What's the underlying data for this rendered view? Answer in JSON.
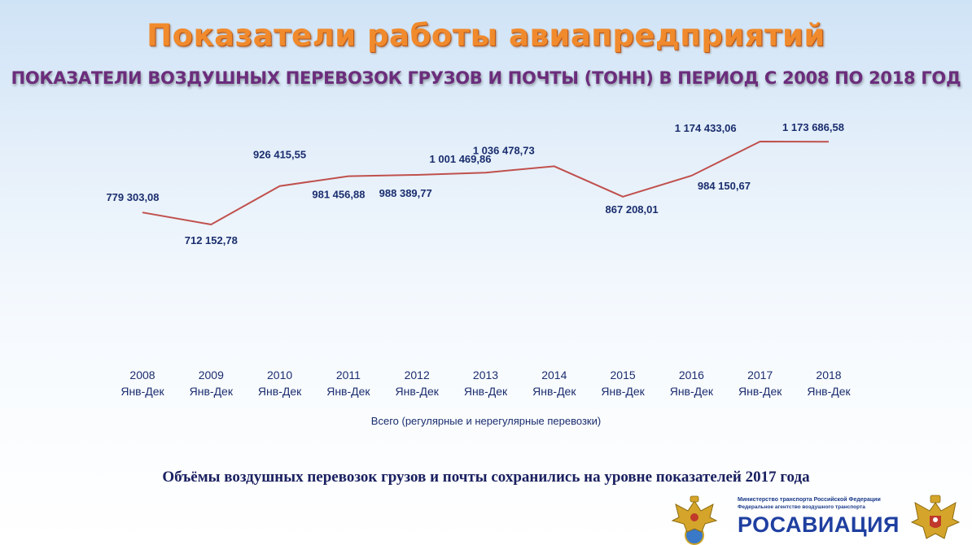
{
  "header": {
    "title": "Показатели работы авиапредприятий",
    "subtitle": "ПОКАЗАТЕЛИ ВОЗДУШНЫХ ПЕРЕВОЗОК ГРУЗОВ И ПОЧТЫ (ТОНН) В ПЕРИОД С 2008 ПО 2018 ГОД"
  },
  "chart_data": {
    "type": "line",
    "categories": [
      "2008",
      "2009",
      "2010",
      "2011",
      "2012",
      "2013",
      "2014",
      "2015",
      "2016",
      "2017",
      "2018"
    ],
    "category_sublabel": "Янв-Дек",
    "series": [
      {
        "name": "Всего (регулярные и нерегулярные перевозки)",
        "color": "#c0504d",
        "values": [
          779303.08,
          712152.78,
          926415.55,
          981456.88,
          988389.77,
          1001469.86,
          1036478.73,
          867208.01,
          984150.67,
          1174433.06,
          1173686.58
        ],
        "labels": [
          "779 303,08",
          "712 152,78",
          "926 415,55",
          "981 456,88",
          "988 389,77",
          "1 001 469,86",
          "1 036 478,73",
          "867 208,01",
          "984 150,67",
          "1 174 433,06",
          "1 173 686,58"
        ]
      }
    ],
    "xlabel": "Всего (регулярные и нерегулярные перевозки)",
    "label_color": "#1a2d6e",
    "highlight_color": "#c00000",
    "ylim": [
      0,
      1250000
    ],
    "grid": false,
    "legend": "bottom"
  },
  "footer": {
    "note": "Объёмы воздушных перевозок грузов и почты сохранились на уровне показателей 2017 года"
  },
  "logo": {
    "ministry_line": "Министерство транспорта Российской Федерации",
    "agency_line": "Федеральное агентство воздушного транспорта",
    "name": "РОСАВИАЦИЯ"
  }
}
